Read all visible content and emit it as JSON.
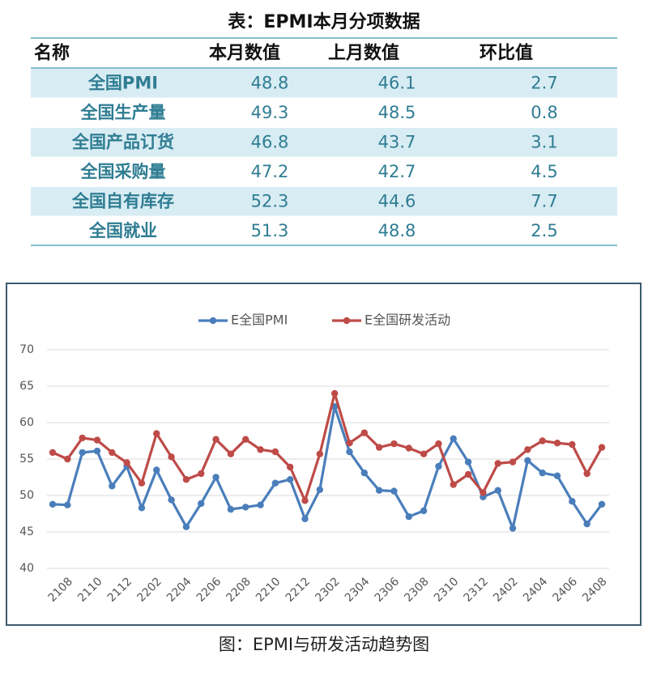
{
  "table": {
    "title": "表：EPMI本月分项数据",
    "header": [
      "名称",
      "本月数值",
      "上月数值",
      "环比值"
    ],
    "rows": [
      [
        "全国PMI",
        48.8,
        46.1,
        2.7
      ],
      [
        "全国生产量",
        49.3,
        48.5,
        0.8
      ],
      [
        "全国产品订货",
        46.8,
        43.7,
        3.1
      ],
      [
        "全国采购量",
        47.2,
        42.7,
        4.5
      ],
      [
        "全国自有库存",
        52.3,
        44.6,
        7.7
      ],
      [
        "全国就业",
        51.3,
        48.8,
        2.5
      ]
    ]
  },
  "chart_data": {
    "type": "line",
    "categories": [
      null,
      "2108",
      null,
      "2110",
      null,
      "2112",
      null,
      "2202",
      null,
      "2204",
      null,
      "2206",
      null,
      "2208",
      null,
      "2210",
      null,
      "2212",
      null,
      "2302",
      null,
      "2304",
      null,
      "2306",
      null,
      "2308",
      null,
      "2310",
      null,
      "2312",
      null,
      "2402",
      null,
      "2404",
      null,
      "2406",
      null,
      "2408"
    ],
    "series": [
      {
        "name": "E全国PMI",
        "color": "#4a7ebb",
        "values": [
          48.8,
          48.7,
          55.9,
          56.1,
          51.3,
          54.0,
          48.3,
          53.5,
          49.4,
          45.7,
          48.9,
          52.5,
          48.1,
          48.4,
          48.7,
          51.7,
          52.2,
          46.8,
          50.8,
          62.2,
          56.0,
          53.1,
          50.7,
          50.6,
          47.1,
          47.9,
          54.0,
          57.8,
          54.6,
          49.8,
          50.7,
          45.5,
          54.8,
          53.1,
          52.7,
          49.2,
          46.1,
          48.8
        ]
      },
      {
        "name": "E全国研发活动",
        "color": "#be4b48",
        "values": [
          55.9,
          55.0,
          57.9,
          57.6,
          55.9,
          54.5,
          51.7,
          58.5,
          55.3,
          52.2,
          53.0,
          57.7,
          55.7,
          57.7,
          56.3,
          56.0,
          53.9,
          49.3,
          55.7,
          64.0,
          57.2,
          58.6,
          56.6,
          57.1,
          56.5,
          55.7,
          57.1,
          51.5,
          52.9,
          50.4,
          54.4,
          54.6,
          56.3,
          57.5,
          57.2,
          57.0,
          53.0,
          56.6
        ]
      }
    ],
    "ylim": [
      40,
      70
    ],
    "yticks": [
      40,
      45,
      50,
      55,
      60,
      65,
      70
    ],
    "grid": true,
    "legend": "top"
  },
  "caption": "图：EPMI与研发活动趋势图"
}
